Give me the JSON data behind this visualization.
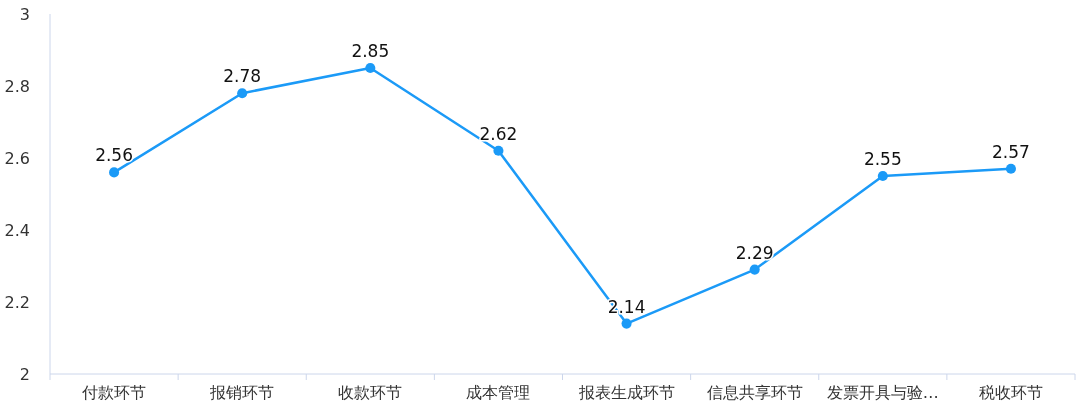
{
  "chart_data": {
    "type": "line",
    "categories": [
      "付款环节",
      "报销环节",
      "收款环节",
      "成本管理",
      "报表生成环节",
      "信息共享环节",
      "发票开具与验…",
      "税收环节"
    ],
    "series": [
      {
        "color": "#1b9af7",
        "values": [
          2.56,
          2.78,
          2.85,
          2.62,
          2.14,
          2.29,
          2.55,
          2.57
        ]
      }
    ],
    "ylim": [
      2,
      3
    ],
    "yticks": [
      2,
      2.2,
      2.4,
      2.6,
      2.8,
      3
    ],
    "data_labels": true,
    "marker": "circle"
  }
}
